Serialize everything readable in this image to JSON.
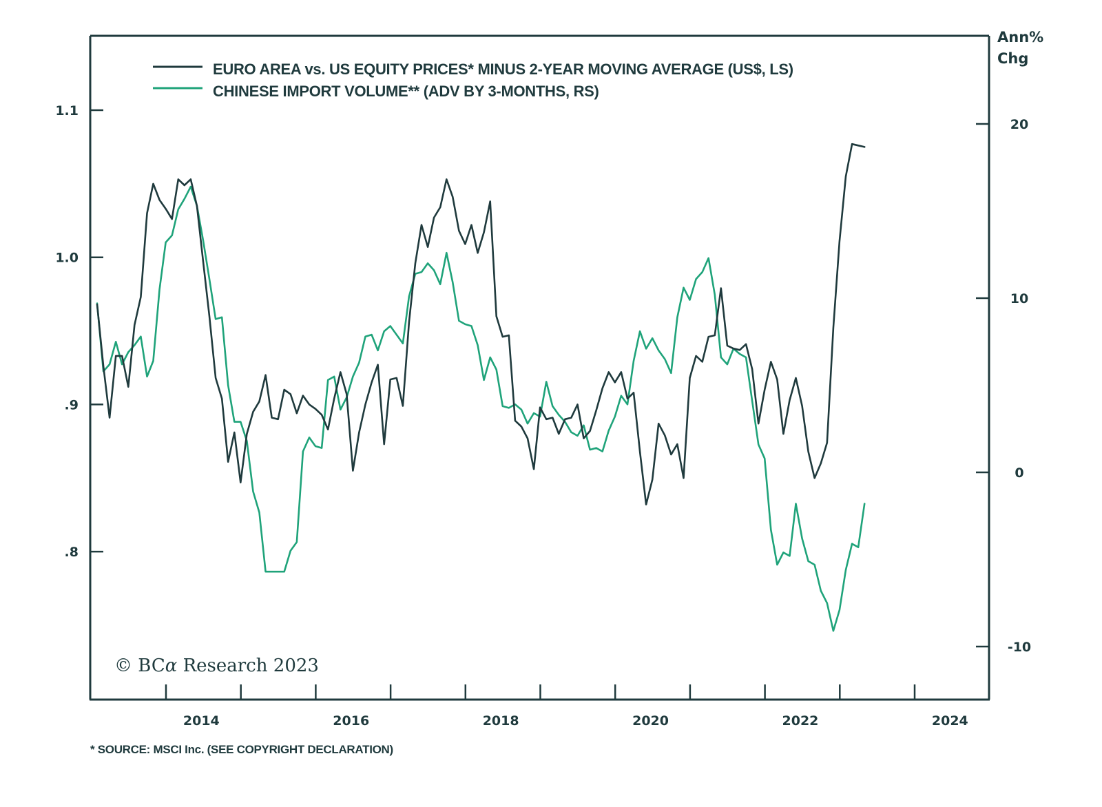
{
  "chart_data": {
    "type": "line",
    "title": "",
    "legend": [
      {
        "label": "EURO AREA vs. US EQUITY PRICES* MINUS 2-YEAR MOVING AVERAGE (US$, LS)",
        "color": "#1f3a3d",
        "axis": "left"
      },
      {
        "label": "CHINESE IMPORT VOLUME** (ADV BY 3-MONTHS, RS)",
        "color": "#1fa37a",
        "axis": "right"
      }
    ],
    "legend_position": "top-left",
    "x_axis": {
      "range": [
        2013.0,
        2025.0
      ],
      "major_ticks": [
        2014,
        2015,
        2016,
        2017,
        2018,
        2019,
        2020,
        2021,
        2022,
        2023,
        2024
      ],
      "labels": [
        "2014",
        "2016",
        "2018",
        "2020",
        "2022",
        "2024"
      ]
    },
    "y_left": {
      "range": [
        0.7,
        1.15
      ],
      "ticks": [
        1.1,
        1.0,
        0.9,
        0.8
      ],
      "tick_labels": [
        "1.1",
        "1.0",
        ".9",
        ".8"
      ]
    },
    "y_right": {
      "label_line1": "Ann%",
      "label_line2": "Chg",
      "range": [
        -13.0,
        25.0
      ],
      "ticks": [
        20,
        10,
        0,
        -10
      ],
      "tick_labels": [
        "20",
        "10",
        "0",
        "-10"
      ]
    },
    "x_start": 2013.08,
    "x_step_months": 1,
    "series": [
      {
        "name": "EURO AREA vs. US EQUITY PRICES* MINUS 2-YEAR MOVING AVERAGE (US$, LS)",
        "axis": "left",
        "color": "#1f3a3d",
        "values": [
          0.968,
          0.926,
          0.891,
          0.933,
          0.933,
          0.912,
          0.954,
          0.973,
          1.03,
          1.05,
          1.039,
          1.033,
          1.026,
          1.053,
          1.049,
          1.053,
          1.035,
          0.997,
          0.96,
          0.918,
          0.904,
          0.861,
          0.881,
          0.847,
          0.88,
          0.895,
          0.902,
          0.92,
          0.891,
          0.89,
          0.91,
          0.907,
          0.894,
          0.906,
          0.9,
          0.897,
          0.893,
          0.883,
          0.904,
          0.922,
          0.907,
          0.855,
          0.881,
          0.9,
          0.915,
          0.927,
          0.873,
          0.917,
          0.918,
          0.899,
          0.956,
          0.996,
          1.022,
          1.007,
          1.027,
          1.034,
          1.053,
          1.041,
          1.018,
          1.009,
          1.022,
          1.003,
          1.017,
          1.038,
          0.96,
          0.946,
          0.947,
          0.889,
          0.885,
          0.877,
          0.856,
          0.898,
          0.89,
          0.891,
          0.88,
          0.89,
          0.891,
          0.9,
          0.877,
          0.882,
          0.896,
          0.911,
          0.922,
          0.915,
          0.922,
          0.904,
          0.908,
          0.868,
          0.832,
          0.849,
          0.887,
          0.879,
          0.866,
          0.873,
          0.85,
          0.918,
          0.933,
          0.929,
          0.946,
          0.947,
          0.979,
          0.94,
          0.938,
          0.937,
          0.941,
          0.924,
          0.887,
          0.91,
          0.929,
          0.917,
          0.88,
          0.903,
          0.918,
          0.899,
          0.868,
          0.85,
          0.86,
          0.874,
          0.952,
          1.011,
          1.055,
          1.077,
          1.076,
          1.075
        ]
      },
      {
        "name": "CHINESE IMPORT VOLUME** (ADV BY 3-MONTHS, RS)",
        "axis": "right",
        "color": "#1fa37a",
        "values": [
          9.7,
          5.8,
          6.2,
          7.5,
          6.2,
          6.9,
          7.3,
          7.8,
          5.5,
          6.4,
          10.5,
          13.2,
          13.6,
          15.1,
          15.7,
          16.4,
          15.3,
          13.3,
          11.1,
          8.8,
          8.9,
          5.0,
          2.9,
          2.9,
          1.8,
          -1.1,
          -2.3,
          -5.7,
          -5.7,
          -5.7,
          -5.7,
          -4.5,
          -4.0,
          1.2,
          2.0,
          1.5,
          1.4,
          5.3,
          5.5,
          3.6,
          4.3,
          5.5,
          6.3,
          7.8,
          7.9,
          7.0,
          8.1,
          8.4,
          7.9,
          7.4,
          10.1,
          11.4,
          11.5,
          12.0,
          11.6,
          10.8,
          12.6,
          10.9,
          8.7,
          8.5,
          8.4,
          7.3,
          5.3,
          6.6,
          5.9,
          3.8,
          3.7,
          3.9,
          3.6,
          2.8,
          3.4,
          3.2,
          5.2,
          3.8,
          3.3,
          2.9,
          2.3,
          2.1,
          2.7,
          1.3,
          1.4,
          1.2,
          2.4,
          3.2,
          4.4,
          3.9,
          6.4,
          8.1,
          7.1,
          7.7,
          7.0,
          6.5,
          5.7,
          8.9,
          10.6,
          9.9,
          11.1,
          11.5,
          12.3,
          10.2,
          6.6,
          6.2,
          7.1,
          6.8,
          6.6,
          4.1,
          1.6,
          0.8,
          -3.3,
          -5.3,
          -4.6,
          -4.8,
          -1.8,
          -3.8,
          -5.1,
          -5.3,
          -6.8,
          -7.5,
          -9.1,
          -7.9,
          -5.6,
          -4.1,
          -4.3,
          -1.8
        ]
      }
    ]
  },
  "copyright": {
    "prefix": "© BC",
    "alpha": "α",
    "suffix": " Research 2023"
  },
  "footnote": "* SOURCE: MSCI Inc. (SEE COPYRIGHT DECLARATION)"
}
